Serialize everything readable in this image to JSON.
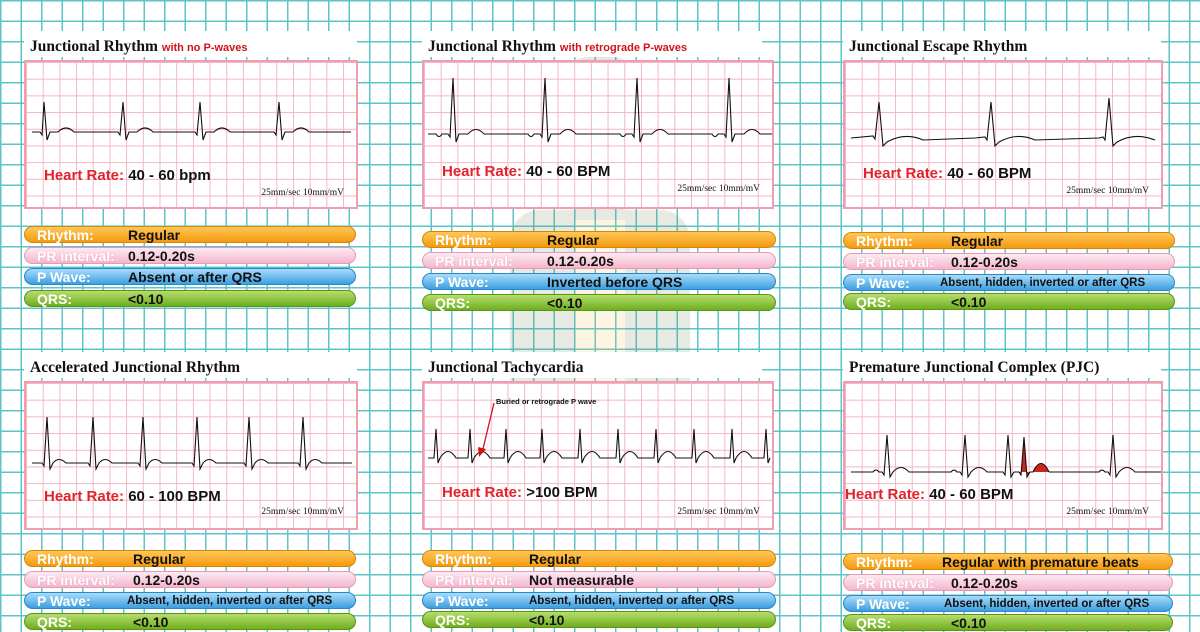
{
  "panels": [
    {
      "title": "Junctional Rhythm",
      "subtitle": "with no P-waves",
      "heart_rate_label": "Heart Rate:",
      "heart_rate": "40 - 60 bpm",
      "speed": "25mm/sec  10mm/mV",
      "callout": "",
      "rhythm_label": "Rhythm:",
      "rhythm": "Regular",
      "pr_label": "PR interval:",
      "pr": "0.12-0.20s",
      "pwave_label": "P Wave:",
      "pwave": "Absent or after QRS",
      "qrs_label": "QRS:",
      "qrs": "<0.10"
    },
    {
      "title": "Junctional Rhythm",
      "subtitle": "with retrograde P-waves",
      "heart_rate_label": "Heart Rate:",
      "heart_rate": "40 - 60 BPM",
      "speed": "25mm/sec  10mm/mV",
      "callout": "",
      "rhythm_label": "Rhythm:",
      "rhythm": "Regular",
      "pr_label": "PR interval:",
      "pr": "0.12-0.20s",
      "pwave_label": "P Wave:",
      "pwave": "Inverted before QRS",
      "qrs_label": "QRS:",
      "qrs": "<0.10"
    },
    {
      "title": "Junctional Escape Rhythm",
      "subtitle": "",
      "heart_rate_label": "Heart Rate:",
      "heart_rate": "40 - 60 BPM",
      "speed": "25mm/sec  10mm/mV",
      "callout": "",
      "rhythm_label": "Rhythm:",
      "rhythm": "Regular",
      "pr_label": "PR interval:",
      "pr": "0.12-0.20s",
      "pwave_label": "P Wave:",
      "pwave": "Absent, hidden, inverted or after QRS",
      "qrs_label": "QRS:",
      "qrs": "<0.10"
    },
    {
      "title": "Accelerated Junctional Rhythm",
      "subtitle": "",
      "heart_rate_label": "Heart Rate:",
      "heart_rate": "60 - 100 BPM",
      "speed": "25mm/sec  10mm/mV",
      "callout": "",
      "rhythm_label": "Rhythm:",
      "rhythm": "Regular",
      "pr_label": "PR interval:",
      "pr": "0.12-0.20s",
      "pwave_label": "P Wave:",
      "pwave": "Absent, hidden, inverted or after QRS",
      "qrs_label": "QRS:",
      "qrs": "<0.10"
    },
    {
      "title": "Junctional Tachycardia",
      "subtitle": "",
      "heart_rate_label": "Heart Rate:",
      "heart_rate": ">100 BPM",
      "speed": "25mm/sec  10mm/mV",
      "callout": "Buried or retrograde P wave",
      "rhythm_label": "Rhythm:",
      "rhythm": "Regular",
      "pr_label": "PR interval:",
      "pr": "Not measurable",
      "pwave_label": "P Wave:",
      "pwave": "Absent, hidden, inverted or after QRS",
      "qrs_label": "QRS:",
      "qrs": "<0.10"
    },
    {
      "title": "Premature Junctional Complex  (PJC)",
      "subtitle": "",
      "heart_rate_label": "Heart Rate:",
      "heart_rate": "40 - 60 BPM",
      "speed": "25mm/sec  10mm/mV",
      "callout": "",
      "rhythm_label": "Rhythm:",
      "rhythm": "Regular with premature beats",
      "pr_label": "PR interval:",
      "pr": "0.12-0.20s",
      "pwave_label": "P Wave:",
      "pwave": "Absent, hidden, inverted or after QRS",
      "qrs_label": "QRS:",
      "qrs": "<0.10"
    }
  ],
  "colors": {
    "rhythm_bar": "#f59a0f",
    "pr_bar": "#f4b6cd",
    "pwave_bar": "#3d9fe0",
    "qrs_bar": "#6fae1f",
    "label_red": "#e0232c",
    "strip_grid": "#f4b5c4",
    "page_grid": "#5fc4c8",
    "pjc_highlight": "#c8281b"
  }
}
